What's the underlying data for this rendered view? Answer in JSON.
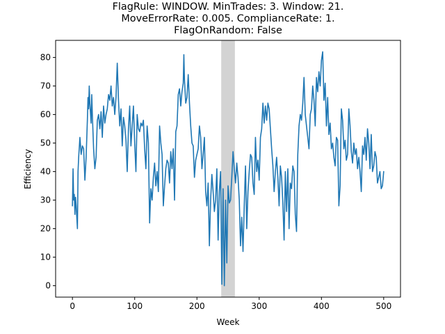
{
  "chart_data": {
    "type": "line",
    "title_lines": [
      "FlagRule: WINDOW. MinTrades: 3. Window: 21.",
      "MoveErrorRate: 0.005. ComplianceRate: 1.",
      "FlagOnRandom: False"
    ],
    "xlabel": "Week",
    "ylabel": "Efficiency",
    "xlim": [
      -27,
      527
    ],
    "ylim": [
      -4,
      86
    ],
    "xticks": [
      0,
      100,
      200,
      300,
      400,
      500
    ],
    "yticks": [
      0,
      10,
      20,
      30,
      40,
      50,
      60,
      70,
      80
    ],
    "xtick_labels": [
      "0",
      "100",
      "200",
      "300",
      "400",
      "500"
    ],
    "ytick_labels": [
      "0",
      "10",
      "20",
      "30",
      "40",
      "50",
      "60",
      "70",
      "80"
    ],
    "grid": false,
    "shaded_region": {
      "x_start": 239,
      "x_end": 261,
      "color": "#d3d3d3"
    },
    "series": [
      {
        "color": "#1f77b4",
        "points": [
          [
            0,
            28
          ],
          [
            1,
            41
          ],
          [
            2,
            30
          ],
          [
            3,
            32
          ],
          [
            4,
            25
          ],
          [
            5,
            31
          ],
          [
            6,
            28
          ],
          [
            8,
            20
          ],
          [
            9,
            40
          ],
          [
            10,
            45
          ],
          [
            12,
            52
          ],
          [
            14,
            46
          ],
          [
            16,
            49
          ],
          [
            18,
            48
          ],
          [
            20,
            37
          ],
          [
            22,
            45
          ],
          [
            24,
            58
          ],
          [
            25,
            66
          ],
          [
            26,
            62
          ],
          [
            27,
            70
          ],
          [
            28,
            64
          ],
          [
            30,
            57
          ],
          [
            31,
            67
          ],
          [
            32,
            60
          ],
          [
            34,
            48
          ],
          [
            36,
            41
          ],
          [
            38,
            45
          ],
          [
            40,
            58
          ],
          [
            42,
            60
          ],
          [
            44,
            55
          ],
          [
            46,
            61
          ],
          [
            48,
            52
          ],
          [
            50,
            63
          ],
          [
            52,
            57
          ],
          [
            54,
            60
          ],
          [
            56,
            62
          ],
          [
            58,
            67
          ],
          [
            60,
            65
          ],
          [
            62,
            70
          ],
          [
            64,
            63
          ],
          [
            66,
            66
          ],
          [
            68,
            60
          ],
          [
            70,
            66
          ],
          [
            72,
            78
          ],
          [
            74,
            65
          ],
          [
            76,
            56
          ],
          [
            78,
            62
          ],
          [
            80,
            49
          ],
          [
            82,
            59
          ],
          [
            84,
            56
          ],
          [
            86,
            51
          ],
          [
            88,
            40
          ],
          [
            90,
            55
          ],
          [
            92,
            63
          ],
          [
            94,
            49
          ],
          [
            96,
            56
          ],
          [
            98,
            63
          ],
          [
            100,
            50
          ],
          [
            102,
            40
          ],
          [
            104,
            60
          ],
          [
            106,
            55
          ],
          [
            108,
            54
          ],
          [
            110,
            57
          ],
          [
            112,
            56
          ],
          [
            114,
            58
          ],
          [
            116,
            48
          ],
          [
            118,
            41
          ],
          [
            120,
            56
          ],
          [
            122,
            50
          ],
          [
            124,
            22
          ],
          [
            126,
            34
          ],
          [
            128,
            30
          ],
          [
            130,
            38
          ],
          [
            132,
            43
          ],
          [
            134,
            35
          ],
          [
            136,
            40
          ],
          [
            138,
            33
          ],
          [
            140,
            56
          ],
          [
            142,
            50
          ],
          [
            144,
            46
          ],
          [
            146,
            28
          ],
          [
            148,
            35
          ],
          [
            150,
            41
          ],
          [
            152,
            44
          ],
          [
            154,
            43
          ],
          [
            156,
            36
          ],
          [
            158,
            47
          ],
          [
            160,
            41
          ],
          [
            162,
            48
          ],
          [
            164,
            30
          ],
          [
            166,
            54
          ],
          [
            168,
            56
          ],
          [
            170,
            67
          ],
          [
            172,
            69
          ],
          [
            174,
            63
          ],
          [
            176,
            68
          ],
          [
            178,
            71
          ],
          [
            179,
            81
          ],
          [
            180,
            72
          ],
          [
            182,
            64
          ],
          [
            184,
            66
          ],
          [
            186,
            74
          ],
          [
            188,
            64
          ],
          [
            190,
            56
          ],
          [
            192,
            50
          ],
          [
            194,
            49
          ],
          [
            196,
            38
          ],
          [
            198,
            44
          ],
          [
            200,
            46
          ],
          [
            202,
            48
          ],
          [
            204,
            56
          ],
          [
            206,
            52
          ],
          [
            208,
            41
          ],
          [
            210,
            46
          ],
          [
            212,
            52
          ],
          [
            214,
            33
          ],
          [
            216,
            28
          ],
          [
            218,
            36
          ],
          [
            220,
            14
          ],
          [
            222,
            30
          ],
          [
            224,
            39
          ],
          [
            226,
            33
          ],
          [
            228,
            26
          ],
          [
            230,
            30
          ],
          [
            232,
            41
          ],
          [
            234,
            16
          ],
          [
            236,
            33
          ],
          [
            238,
            40
          ],
          [
            240,
            0.5
          ],
          [
            242,
            34
          ],
          [
            244,
            0
          ],
          [
            246,
            30
          ],
          [
            248,
            8
          ],
          [
            250,
            35
          ],
          [
            252,
            29
          ],
          [
            254,
            30
          ],
          [
            256,
            38
          ],
          [
            258,
            47
          ],
          [
            260,
            41
          ],
          [
            262,
            36
          ],
          [
            264,
            43
          ],
          [
            266,
            38
          ],
          [
            268,
            30
          ],
          [
            270,
            14
          ],
          [
            272,
            24
          ],
          [
            274,
            12
          ],
          [
            276,
            28
          ],
          [
            278,
            42
          ],
          [
            280,
            20
          ],
          [
            282,
            33
          ],
          [
            284,
            40
          ],
          [
            286,
            46
          ],
          [
            288,
            45
          ],
          [
            290,
            36
          ],
          [
            292,
            32
          ],
          [
            294,
            52
          ],
          [
            296,
            40
          ],
          [
            298,
            44
          ],
          [
            300,
            37
          ],
          [
            302,
            52
          ],
          [
            304,
            55
          ],
          [
            306,
            64
          ],
          [
            308,
            57
          ],
          [
            310,
            63
          ],
          [
            312,
            58
          ],
          [
            314,
            64
          ],
          [
            316,
            62
          ],
          [
            318,
            55
          ],
          [
            320,
            48
          ],
          [
            322,
            42
          ],
          [
            324,
            33
          ],
          [
            326,
            40
          ],
          [
            328,
            45
          ],
          [
            330,
            38
          ],
          [
            332,
            28
          ],
          [
            334,
            42
          ],
          [
            336,
            38
          ],
          [
            338,
            29
          ],
          [
            340,
            16
          ],
          [
            342,
            40
          ],
          [
            344,
            26
          ],
          [
            346,
            41
          ],
          [
            348,
            20
          ],
          [
            350,
            36
          ],
          [
            352,
            34
          ],
          [
            354,
            42
          ],
          [
            356,
            40
          ],
          [
            358,
            25
          ],
          [
            360,
            19
          ],
          [
            362,
            46
          ],
          [
            364,
            56
          ],
          [
            366,
            60
          ],
          [
            368,
            58
          ],
          [
            370,
            64
          ],
          [
            372,
            73
          ],
          [
            374,
            60
          ],
          [
            376,
            56
          ],
          [
            378,
            52
          ],
          [
            380,
            48
          ],
          [
            382,
            60
          ],
          [
            384,
            62
          ],
          [
            386,
            70
          ],
          [
            388,
            65
          ],
          [
            390,
            56
          ],
          [
            392,
            73
          ],
          [
            394,
            68
          ],
          [
            396,
            75
          ],
          [
            398,
            70
          ],
          [
            400,
            79
          ],
          [
            402,
            82
          ],
          [
            404,
            65
          ],
          [
            406,
            71
          ],
          [
            408,
            56
          ],
          [
            410,
            66
          ],
          [
            412,
            53
          ],
          [
            414,
            57
          ],
          [
            416,
            48
          ],
          [
            418,
            50
          ],
          [
            420,
            45
          ],
          [
            422,
            42
          ],
          [
            424,
            52
          ],
          [
            426,
            51
          ],
          [
            428,
            28
          ],
          [
            430,
            35
          ],
          [
            432,
            62
          ],
          [
            434,
            58
          ],
          [
            436,
            48
          ],
          [
            438,
            51
          ],
          [
            440,
            44
          ],
          [
            442,
            46
          ],
          [
            444,
            62
          ],
          [
            446,
            56
          ],
          [
            448,
            47
          ],
          [
            450,
            43
          ],
          [
            452,
            50
          ],
          [
            454,
            46
          ],
          [
            456,
            48
          ],
          [
            458,
            41
          ],
          [
            460,
            45
          ],
          [
            462,
            40
          ],
          [
            464,
            33
          ],
          [
            466,
            49
          ],
          [
            468,
            46
          ],
          [
            470,
            52
          ],
          [
            472,
            44
          ],
          [
            474,
            55
          ],
          [
            476,
            50
          ],
          [
            478,
            41
          ],
          [
            480,
            53
          ],
          [
            482,
            40
          ],
          [
            484,
            42
          ],
          [
            486,
            47
          ],
          [
            488,
            45
          ],
          [
            490,
            36
          ],
          [
            492,
            38
          ],
          [
            494,
            40
          ],
          [
            496,
            34
          ],
          [
            498,
            35
          ],
          [
            500,
            40
          ]
        ]
      }
    ]
  }
}
